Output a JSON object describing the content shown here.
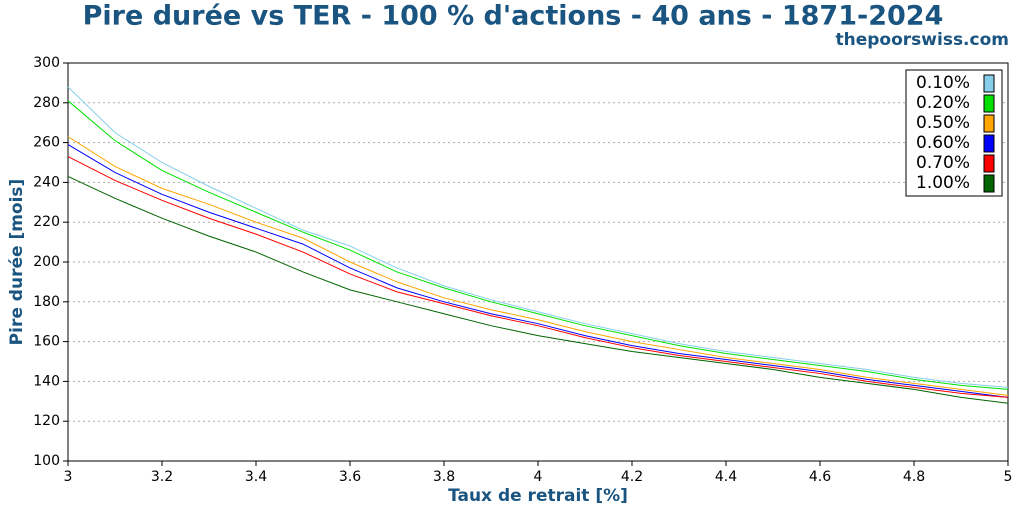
{
  "chart_data": {
    "type": "line",
    "title": "Pire durée vs TER - 100 % d'actions - 40 ans - 1871-2024",
    "subtitle": "thepoorswiss.com",
    "x_label": "Taux de retrait [%]",
    "y_label": "Pire durée [mois]",
    "x": [
      3,
      3.1,
      3.2,
      3.3,
      3.4,
      3.5,
      3.6,
      3.7,
      3.8,
      3.9,
      4,
      4.1,
      4.2,
      4.3,
      4.4,
      4.5,
      4.6,
      4.7,
      4.8,
      4.9,
      5
    ],
    "series": [
      {
        "name": "0.10%",
        "color": "#87ceeb",
        "values": [
          288,
          265,
          250,
          238,
          227,
          216,
          208,
          197,
          188,
          181,
          175,
          169,
          164,
          159,
          155,
          152,
          149,
          146,
          142,
          139,
          137
        ]
      },
      {
        "name": "0.20%",
        "color": "#00e000",
        "values": [
          281,
          261,
          246,
          235,
          225,
          215,
          206,
          195,
          187,
          180,
          174,
          168,
          163,
          158,
          154,
          151,
          148,
          145,
          141,
          138,
          136
        ]
      },
      {
        "name": "0.50%",
        "color": "#ffa500",
        "values": [
          263,
          248,
          237,
          229,
          220,
          212,
          200,
          190,
          182,
          176,
          171,
          165,
          160,
          156,
          152,
          149,
          146,
          142,
          139,
          136,
          133
        ]
      },
      {
        "name": "0.60%",
        "color": "#0000ff",
        "values": [
          259,
          245,
          234,
          225,
          217,
          209,
          197,
          187,
          180,
          174,
          169,
          163,
          158,
          154,
          151,
          148,
          145,
          141,
          138,
          135,
          132
        ]
      },
      {
        "name": "0.70%",
        "color": "#ff0000",
        "values": [
          253,
          241,
          231,
          222,
          214,
          205,
          194,
          185,
          179,
          173,
          168,
          162,
          157,
          153,
          150,
          147,
          144,
          140,
          137,
          134,
          132
        ]
      },
      {
        "name": "1.00%",
        "color": "#006400",
        "values": [
          243,
          232,
          222,
          213,
          205,
          195,
          186,
          180,
          174,
          168,
          163,
          159,
          155,
          152,
          149,
          146,
          142,
          139,
          136,
          132,
          129
        ]
      }
    ],
    "xlim": [
      3,
      5
    ],
    "xticks": [
      3,
      3.2,
      3.4,
      3.6,
      3.8,
      4,
      4.2,
      4.4,
      4.6,
      4.8,
      5
    ],
    "ylim": [
      100,
      300
    ],
    "yticks": [
      100,
      120,
      140,
      160,
      180,
      200,
      220,
      240,
      260,
      280,
      300
    ],
    "grid": true,
    "legend": "upper right"
  }
}
